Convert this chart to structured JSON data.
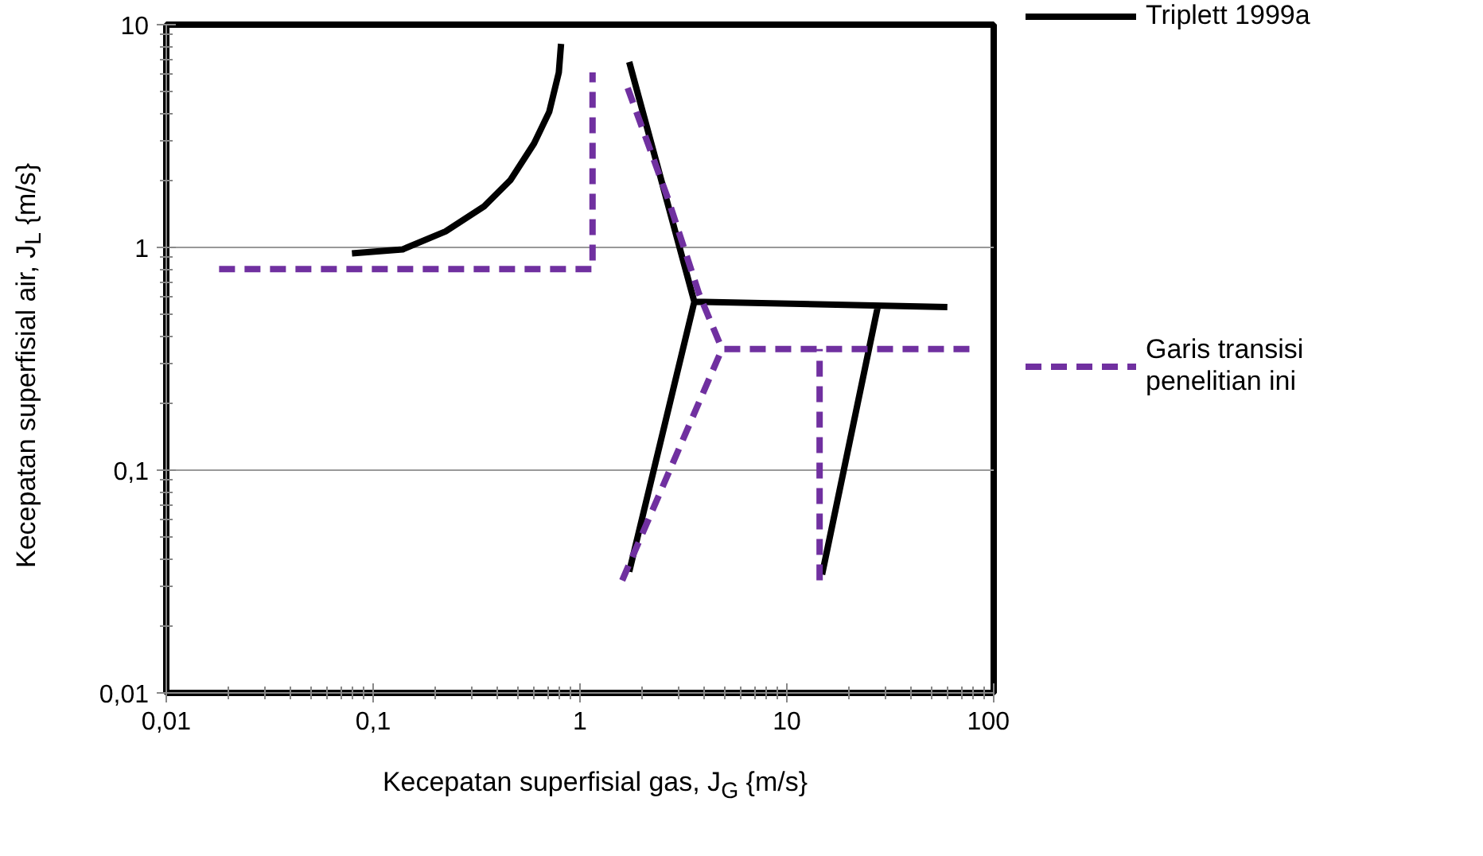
{
  "chart_data": {
    "type": "line",
    "xlabel": "Kecepatan superfisial gas, J$_{G}$ {m/s}",
    "ylabel": "Kecepatan superfisial air, J$_{L}$ {m/s}",
    "log": "xy",
    "grid": "y",
    "legend": "right",
    "marker": "none",
    "xlim": [
      0.01,
      100
    ],
    "ylim": [
      0.01,
      10
    ],
    "xticks": [
      {
        "value": 0.01,
        "label": "0,01"
      },
      {
        "value": 0.1,
        "label": "0,1"
      },
      1,
      10,
      100
    ],
    "yticks": [
      {
        "value": 0.01,
        "label": "0,01"
      },
      {
        "value": 0.1,
        "label": "0,1"
      },
      1,
      10
    ],
    "series": [
      {
        "name": "Triplett 1999a",
        "color": "#000000",
        "line_style": "solid",
        "x": [
          0.079,
          0.139,
          0.224,
          0.344,
          0.46,
          0.6,
          0.71,
          0.79,
          0.81,
          null,
          1.73,
          3.57,
          59.7,
          null,
          1.73,
          3.57,
          null,
          14.8,
          27.5
        ],
        "values": [
          0.94,
          0.98,
          1.18,
          1.53,
          2.0,
          2.93,
          4.06,
          6.1,
          8.2,
          null,
          6.8,
          0.57,
          0.54,
          null,
          0.035,
          0.57,
          null,
          0.034,
          0.54
        ]
      },
      {
        "name": "Garis transisi\npenelitian ini",
        "color": "#7030a0",
        "line_style": "dashed",
        "x": [
          0.018,
          1.15,
          1.15,
          null,
          1.7,
          2.66,
          3.76,
          4.86,
          80,
          null,
          1.6,
          4.86,
          null,
          14.4,
          14.4
        ],
        "values": [
          0.8,
          0.8,
          6.1,
          null,
          5.2,
          1.66,
          0.62,
          0.35,
          0.35,
          null,
          0.032,
          0.35,
          null,
          0.032,
          0.35
        ]
      }
    ]
  }
}
